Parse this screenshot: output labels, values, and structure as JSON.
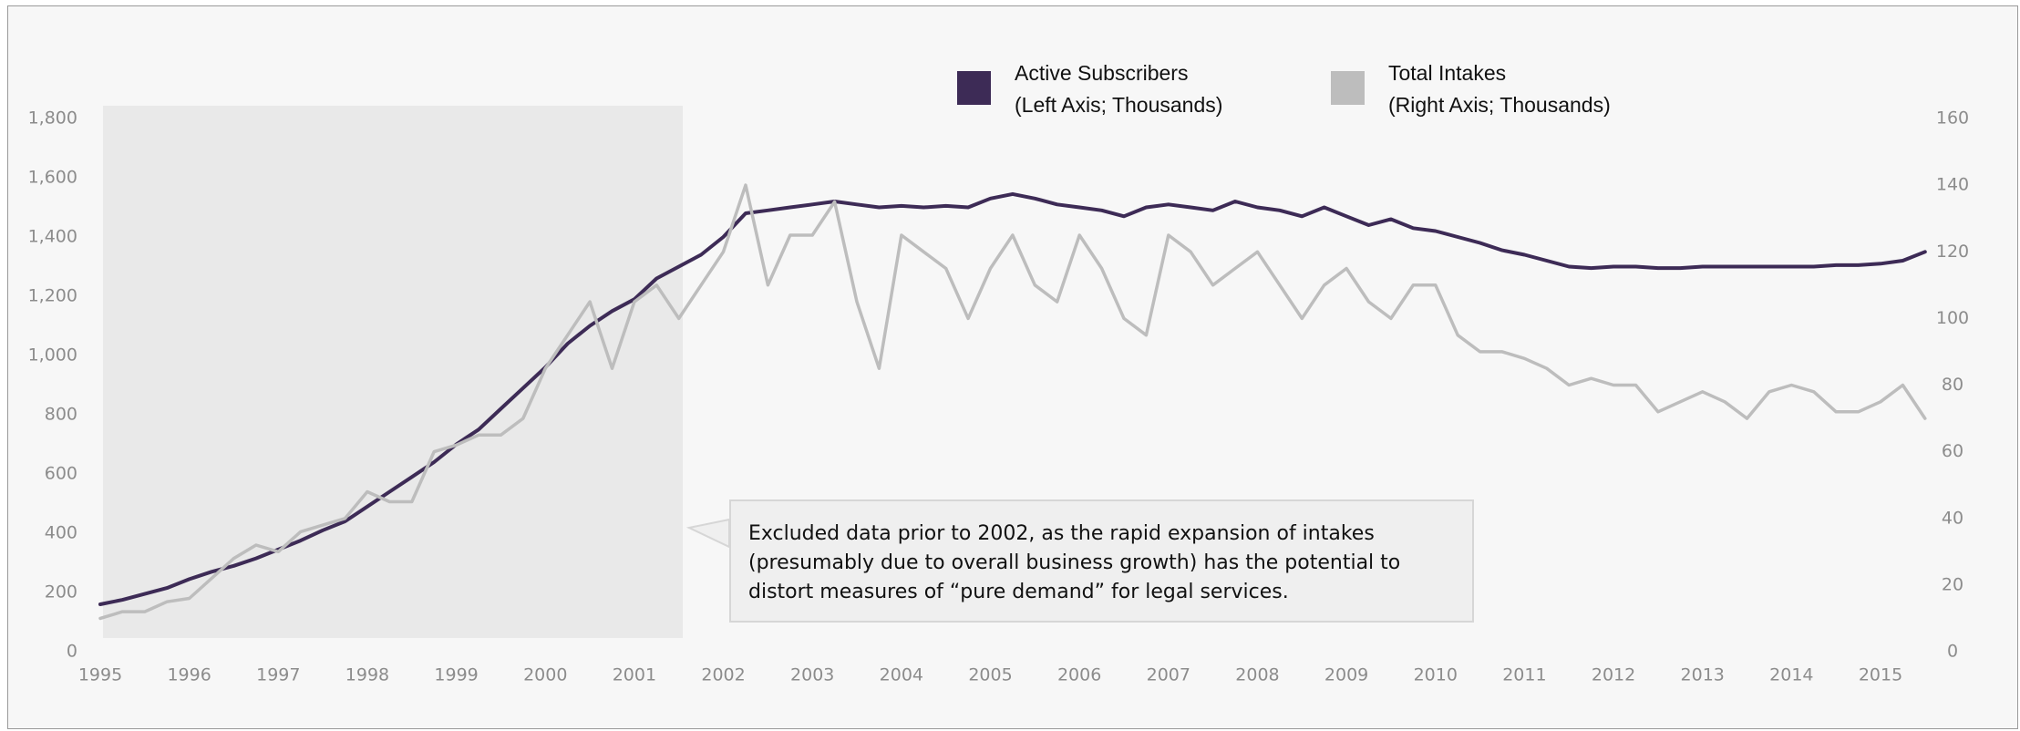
{
  "chart_data": {
    "type": "line",
    "annotation": "Excluded data prior to 2002, as the rapid expansion of intakes (presumably due to overall business growth) has the potential to distort measures of “pure demand” for legal services.",
    "x": [
      1995,
      1995.25,
      1995.5,
      1995.75,
      1996,
      1996.25,
      1996.5,
      1996.75,
      1997,
      1997.25,
      1997.5,
      1997.75,
      1998,
      1998.25,
      1998.5,
      1998.75,
      1999,
      1999.25,
      1999.5,
      1999.75,
      2000,
      2000.25,
      2000.5,
      2000.75,
      2001,
      2001.25,
      2001.5,
      2001.75,
      2002,
      2002.25,
      2002.5,
      2002.75,
      2003,
      2003.25,
      2003.5,
      2003.75,
      2004,
      2004.25,
      2004.5,
      2004.75,
      2005,
      2005.25,
      2005.5,
      2005.75,
      2006,
      2006.25,
      2006.5,
      2006.75,
      2007,
      2007.25,
      2007.5,
      2007.75,
      2008,
      2008.25,
      2008.5,
      2008.75,
      2009,
      2009.25,
      2009.5,
      2009.75,
      2010,
      2010.25,
      2010.5,
      2010.75,
      2011,
      2011.25,
      2011.5,
      2011.75,
      2012,
      2012.25,
      2012.5,
      2012.75,
      2013,
      2013.25,
      2013.5,
      2013.75,
      2014,
      2014.25,
      2014.5,
      2014.75,
      2015,
      2015.25,
      2015.5
    ],
    "xlim": [
      1995,
      2015.6
    ],
    "xticks": [
      1995,
      1996,
      1997,
      1998,
      1999,
      2000,
      2001,
      2002,
      2003,
      2004,
      2005,
      2006,
      2007,
      2008,
      2009,
      2010,
      2011,
      2012,
      2013,
      2014,
      2015
    ],
    "ylim": [
      0,
      1800
    ],
    "yticks": [
      0,
      200,
      400,
      600,
      800,
      {
        "value": 1000,
        "label": "1,000"
      },
      {
        "value": 1200,
        "label": "1,200"
      },
      {
        "value": 1400,
        "label": "1,400"
      },
      {
        "value": 1600,
        "label": "1,600"
      },
      {
        "value": 1800,
        "label": "1,800"
      }
    ],
    "y2lim": [
      0,
      160
    ],
    "y2ticks": [
      0,
      20,
      40,
      60,
      80,
      100,
      120,
      140,
      160
    ],
    "series": [
      {
        "name": "Active Subscribers\n(Left Axis; Thousands)",
        "color": "#3d2b56",
        "axis": "y",
        "values": [
          160,
          175,
          195,
          215,
          245,
          270,
          290,
          315,
          345,
          375,
          410,
          440,
          490,
          540,
          590,
          640,
          700,
          750,
          820,
          890,
          960,
          1040,
          1100,
          1150,
          1190,
          1260,
          1300,
          1340,
          1400,
          1480,
          1490,
          1500,
          1510,
          1520,
          1510,
          1500,
          1505,
          1500,
          1505,
          1500,
          1530,
          1545,
          1530,
          1510,
          1500,
          1490,
          1470,
          1500,
          1510,
          1500,
          1490,
          1520,
          1500,
          1490,
          1470,
          1500,
          1470,
          1440,
          1460,
          1430,
          1420,
          1400,
          1380,
          1355,
          1340,
          1320,
          1300,
          1295,
          1300,
          1300,
          1295,
          1295,
          1300,
          1300,
          1300,
          1300,
          1300,
          1300,
          1305,
          1305,
          1310,
          1320,
          1350
        ]
      },
      {
        "name": "Total Intakes\n(Right Axis; Thousands)",
        "color": "#bdbdbd",
        "axis": "y2",
        "values": [
          10,
          12,
          12,
          15,
          16,
          22,
          28,
          32,
          30,
          36,
          38,
          40,
          48,
          45,
          45,
          60,
          62,
          65,
          65,
          70,
          85,
          95,
          105,
          85,
          105,
          110,
          100,
          110,
          120,
          140,
          110,
          125,
          125,
          135,
          105,
          85,
          125,
          120,
          115,
          100,
          115,
          125,
          110,
          105,
          125,
          115,
          100,
          95,
          125,
          120,
          110,
          115,
          120,
          110,
          100,
          110,
          115,
          105,
          100,
          110,
          110,
          95,
          90,
          90,
          88,
          85,
          80,
          82,
          80,
          80,
          72,
          75,
          78,
          75,
          70,
          78,
          80,
          78,
          72,
          72,
          75,
          80,
          70
        ]
      }
    ]
  }
}
